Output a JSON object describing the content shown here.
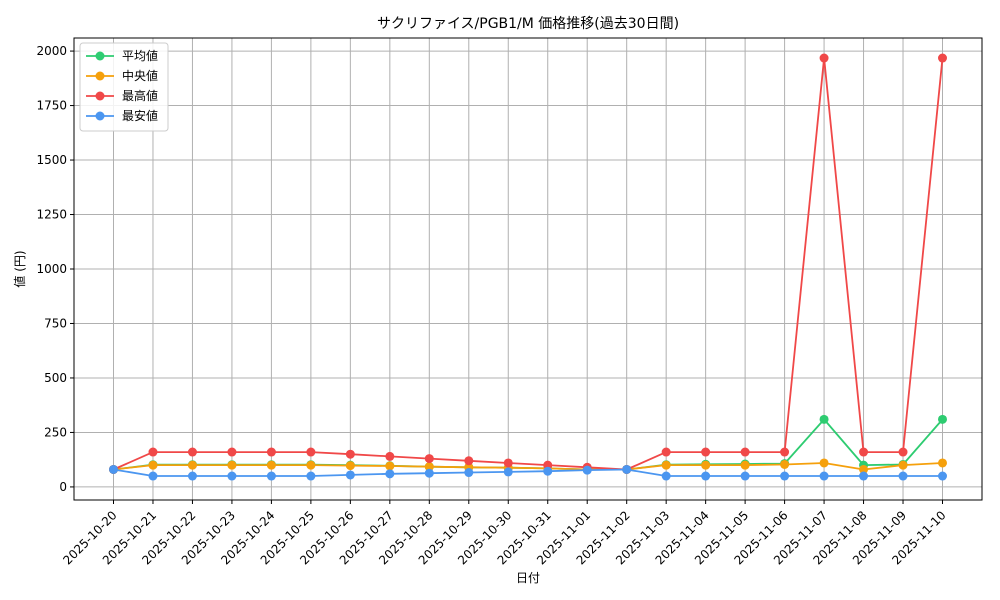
{
  "chart_data": {
    "type": "line",
    "title": "サクリファイス/PGB1/M 価格推移(過去30日間)",
    "xlabel": "日付",
    "ylabel": "値 (円)",
    "categories": [
      "2025-10-20",
      "2025-10-21",
      "2025-10-22",
      "2025-10-23",
      "2025-10-24",
      "2025-10-25",
      "2025-10-26",
      "2025-10-27",
      "2025-10-28",
      "2025-10-29",
      "2025-10-30",
      "2025-10-31",
      "2025-11-01",
      "2025-11-02",
      "2025-11-03",
      "2025-11-04",
      "2025-11-05",
      "2025-11-06",
      "2025-11-07",
      "2025-11-08",
      "2025-11-09",
      "2025-11-10"
    ],
    "ylim": [
      -60,
      2060
    ],
    "yticks": [
      0,
      250,
      500,
      750,
      1000,
      1250,
      1500,
      1750,
      2000
    ],
    "grid": true,
    "legend_position": "top-left",
    "series": [
      {
        "name": "平均値",
        "color": "#2ecc71",
        "values": [
          80,
          102,
          102,
          102,
          102,
          102,
          100,
          97,
          93,
          90,
          88,
          85,
          80,
          80,
          102,
          104,
          105,
          107,
          310,
          100,
          103,
          310
        ]
      },
      {
        "name": "中央値",
        "color": "#f5a00c",
        "values": [
          80,
          100,
          100,
          100,
          100,
          100,
          98,
          96,
          93,
          90,
          88,
          85,
          80,
          80,
          100,
          100,
          100,
          103,
          110,
          80,
          100,
          110
        ]
      },
      {
        "name": "最高値",
        "color": "#f04848",
        "values": [
          80,
          160,
          160,
          160,
          160,
          160,
          150,
          140,
          130,
          120,
          110,
          100,
          90,
          80,
          160,
          160,
          160,
          160,
          1968,
          160,
          160,
          1968
        ]
      },
      {
        "name": "最安値",
        "color": "#4b96f0",
        "values": [
          80,
          50,
          50,
          50,
          50,
          50,
          55,
          60,
          63,
          66,
          69,
          72,
          77,
          80,
          50,
          50,
          50,
          50,
          50,
          50,
          50,
          50
        ]
      }
    ]
  }
}
